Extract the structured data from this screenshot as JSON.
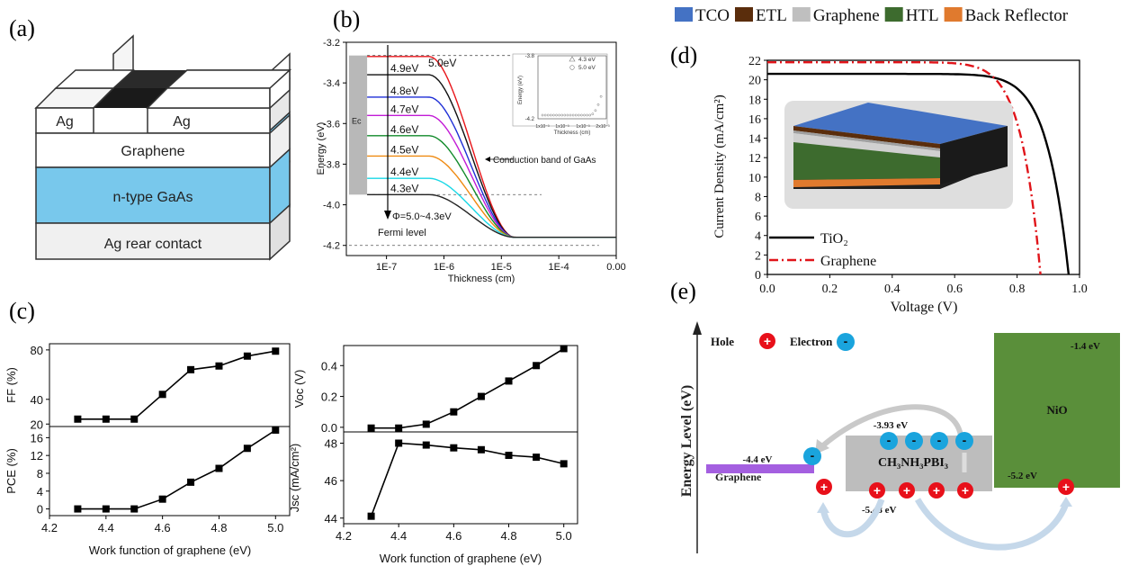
{
  "panels": {
    "a": {
      "label": "(a)",
      "layers": [
        "Ag",
        "Ag",
        "Graphene",
        "n-type GaAs",
        "Ag rear contact"
      ]
    },
    "b": {
      "label": "(b)",
      "inset_legend": [
        "4.3 eV",
        "5.0 eV"
      ],
      "inset_ylabel": "Energy (eV)",
      "inset_xlabel": "Thickness (cm)",
      "inset_yticks": [
        "-3.8",
        "-4.2"
      ],
      "inset_xticks": [
        "1x10⁻³",
        "1x10⁻³",
        "1x10⁻³",
        "2x10⁻³"
      ],
      "ec_label": "Ec",
      "annotation_cb": "Conduction band of GaAs",
      "annotation_phi": "Φ=5.0~4.3eV",
      "fermi_label": "Fermi level"
    },
    "c": {
      "label": "(c)"
    },
    "d": {
      "label": "(d)"
    },
    "e": {
      "label": "(e)",
      "ylabel": "Energy Level (eV)",
      "legend_hole": "Hole",
      "legend_electron": "Electron",
      "graphene_label": "Graphene",
      "graphene_level": "-4.4 eV",
      "perovskite_label": "CH₃NH₃PBI₃",
      "perovskite_cb": "-3.93 eV",
      "perovskite_vb": "-5.48 eV",
      "nio_label": "NiO",
      "nio_cb": "-1.4 eV",
      "nio_vb": "-5.2 eV",
      "hole_sign": "+",
      "electron_sign": "-"
    }
  },
  "legend_top": [
    {
      "label": "TCO",
      "color": "#4472c4"
    },
    {
      "label": "ETL",
      "color": "#5a2d0c"
    },
    {
      "label": "Graphene",
      "color": "#bfbfbf"
    },
    {
      "label": "HTL",
      "color": "#3d6b2e"
    },
    {
      "label": "Back Reflector",
      "color": "#e07a2e"
    }
  ],
  "chart_data": [
    {
      "id": "b",
      "type": "line",
      "xlabel": "Thickness (cm)",
      "ylabel": "Energy (eV)",
      "xlim": [
        2e-08,
        0.001
      ],
      "xscale": "log",
      "xtick_labels": [
        "1E-7",
        "1E-6",
        "1E-5",
        "1E-4",
        "0.00"
      ],
      "ylim": [
        -4.25,
        -3.2
      ],
      "yticks": [
        -3.2,
        -3.4,
        -3.6,
        -3.8,
        -4.0,
        -4.2
      ],
      "series": [
        {
          "name": "5.0eV",
          "color": "#e8161b",
          "start": -3.27
        },
        {
          "name": "4.9eV",
          "color": "#111111",
          "start": -3.36
        },
        {
          "name": "4.8eV",
          "color": "#1f2fd6",
          "start": -3.47
        },
        {
          "name": "4.7eV",
          "color": "#c21bd6",
          "start": -3.56
        },
        {
          "name": "4.6eV",
          "color": "#118a2a",
          "start": -3.66
        },
        {
          "name": "4.5eV",
          "color": "#ef8a12",
          "start": -3.76
        },
        {
          "name": "4.4eV",
          "color": "#19d8e6",
          "start": -3.87
        },
        {
          "name": "4.3eV",
          "color": "#222222",
          "start": -3.95
        }
      ],
      "end_value": -4.16,
      "fermi_level": -4.2
    },
    {
      "id": "c-ff",
      "type": "line",
      "xlabel": "",
      "ylabel": "FF (%)",
      "ylim": [
        18,
        85
      ],
      "yticks": [
        20,
        40,
        80
      ],
      "x": [
        4.3,
        4.4,
        4.5,
        4.6,
        4.7,
        4.8,
        4.9,
        5.0
      ],
      "values": [
        24,
        24,
        24,
        44,
        64,
        67,
        75,
        79
      ]
    },
    {
      "id": "c-pce",
      "type": "line",
      "xlabel": "Work function of graphene (eV)",
      "ylabel": "PCE (%)",
      "ylim": [
        -1.5,
        18.5
      ],
      "yticks": [
        0,
        4,
        8,
        12,
        16
      ],
      "xticks": [
        4.2,
        4.4,
        4.6,
        4.8,
        5.0
      ],
      "x": [
        4.3,
        4.4,
        4.5,
        4.6,
        4.7,
        4.8,
        4.9,
        5.0
      ],
      "values": [
        0,
        0,
        0,
        2.2,
        6,
        9.1,
        13.6,
        17.7
      ]
    },
    {
      "id": "c-voc",
      "type": "line",
      "xlabel": "",
      "ylabel": "Voc (V)",
      "ylim": [
        -0.03,
        0.53
      ],
      "yticks": [
        0.0,
        0.2,
        0.4
      ],
      "x": [
        4.3,
        4.4,
        4.5,
        4.6,
        4.7,
        4.8,
        4.9,
        5.0
      ],
      "values": [
        -0.005,
        -0.005,
        0.02,
        0.1,
        0.2,
        0.3,
        0.4,
        0.51
      ]
    },
    {
      "id": "c-jsc",
      "type": "line",
      "xlabel": "Work function of graphene (eV)",
      "ylabel": "Jsc (mA/cm²)",
      "ylim": [
        43.7,
        48.6
      ],
      "yticks": [
        44,
        46,
        48
      ],
      "xticks": [
        4.2,
        4.4,
        4.6,
        4.8,
        5.0
      ],
      "x": [
        4.3,
        4.4,
        4.5,
        4.6,
        4.7,
        4.8,
        4.9,
        5.0
      ],
      "values": [
        44.1,
        48.0,
        47.9,
        47.75,
        47.65,
        47.35,
        47.25,
        46.9
      ]
    },
    {
      "id": "d",
      "type": "line",
      "xlabel": "Voltage (V)",
      "ylabel": "Current Density (mA/cm²)",
      "xlim": [
        0,
        1.0
      ],
      "ylim": [
        0,
        22
      ],
      "xticks": [
        0.0,
        0.2,
        0.4,
        0.6,
        0.8,
        1.0
      ],
      "yticks": [
        0,
        2,
        4,
        6,
        8,
        10,
        12,
        14,
        16,
        18,
        20,
        22
      ],
      "series": [
        {
          "name": "TiO₂",
          "color": "#000000",
          "style": "solid",
          "jsc": 20.6,
          "voc": 0.965
        },
        {
          "name": "Graphene",
          "color": "#e0141a",
          "style": "dashdot",
          "jsc": 21.8,
          "voc": 0.875
        }
      ]
    }
  ]
}
